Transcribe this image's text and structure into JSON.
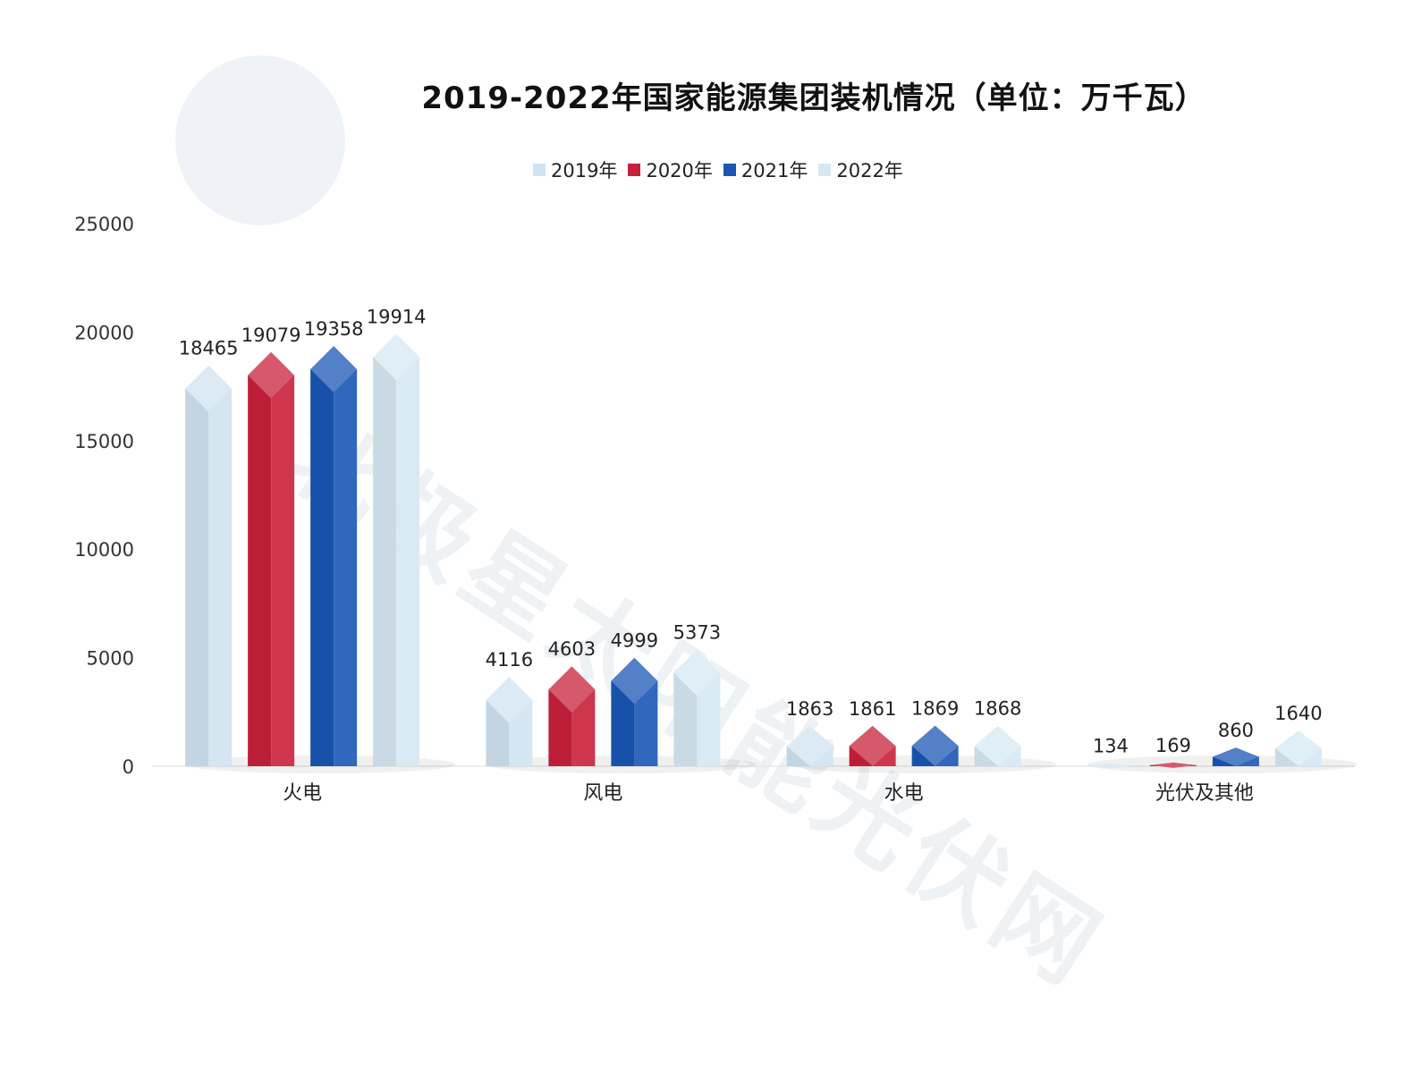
{
  "chart_data": {
    "type": "bar",
    "title": "2019-2022年国家能源集团装机情况（单位：万千瓦）",
    "categories": [
      "火电",
      "风电",
      "水电",
      "光伏及其他"
    ],
    "series": [
      {
        "name": "2019年",
        "values": [
          18465,
          4116,
          1863,
          134
        ],
        "color": "#cfe3f0"
      },
      {
        "name": "2020年",
        "values": [
          19079,
          4603,
          1861,
          169
        ],
        "color": "#c8203a"
      },
      {
        "name": "2021年",
        "values": [
          19358,
          4999,
          1869,
          860
        ],
        "color": "#1a56b4"
      },
      {
        "name": "2022年",
        "values": [
          19914,
          5373,
          1868,
          1640
        ],
        "color": "#d6e8f3"
      }
    ],
    "yticks": [
      "0",
      "5000",
      "10000",
      "15000",
      "20000",
      "25000"
    ],
    "ylim": [
      0,
      25000
    ],
    "xlabel": "",
    "ylabel": "",
    "legend": "top-center",
    "grid": false
  },
  "watermark": {
    "text": "北极星太阳能光伏网"
  }
}
